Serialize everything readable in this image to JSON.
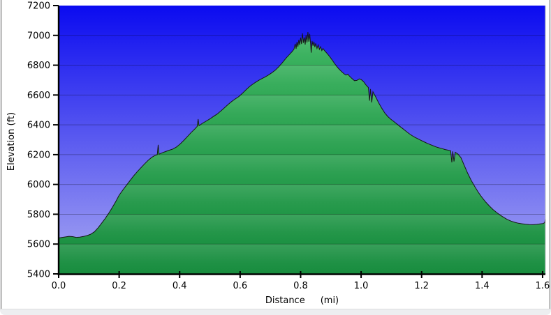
{
  "chart_data": {
    "type": "area",
    "title": "",
    "xlabel": "Distance",
    "xlabel_unit": "(mi)",
    "ylabel": "Elevation (ft)",
    "xlim": [
      0,
      1.609
    ],
    "ylim": [
      5400,
      7200
    ],
    "grid": "horizontal-only",
    "legend": "none",
    "x_ticks": [
      0.0,
      0.2,
      0.4,
      0.6,
      0.8,
      1.0,
      1.2,
      1.4,
      1.6
    ],
    "x_tick_labels": [
      "0.0",
      "0.2",
      "0.4",
      "0.6",
      "0.8",
      "1.0",
      "1.2",
      "1.4",
      "1.6"
    ],
    "y_ticks": [
      5400,
      5600,
      5800,
      6000,
      6200,
      6400,
      6600,
      6800,
      7000,
      7200
    ],
    "y_tick_labels": [
      "5400",
      "5600",
      "5800",
      "6000",
      "6200",
      "6400",
      "6600",
      "6800",
      "7000",
      "7200"
    ],
    "gridline_values": [
      5600,
      5800,
      6000,
      6200,
      6400,
      6600,
      6800,
      7000
    ],
    "colors": {
      "sky_top": "#0b0bf0",
      "sky_bottom": "#a9a9f1",
      "area_top": "#3fb863",
      "area_bottom": "#178c3e",
      "area_outline": "#161616",
      "band_highlight": "rgba(255,255,255,0.13)",
      "gridline": "rgba(0,0,0,0.28)",
      "axis": "#000000",
      "plot_right_border": "#c4c8cc",
      "window_edge": "#edeef0"
    },
    "points": [
      [
        0.0,
        5641
      ],
      [
        0.01,
        5644
      ],
      [
        0.022,
        5648
      ],
      [
        0.034,
        5652
      ],
      [
        0.046,
        5650
      ],
      [
        0.058,
        5645
      ],
      [
        0.07,
        5647
      ],
      [
        0.082,
        5651
      ],
      [
        0.094,
        5657
      ],
      [
        0.106,
        5666
      ],
      [
        0.118,
        5682
      ],
      [
        0.13,
        5708
      ],
      [
        0.142,
        5740
      ],
      [
        0.154,
        5772
      ],
      [
        0.166,
        5808
      ],
      [
        0.178,
        5848
      ],
      [
        0.19,
        5890
      ],
      [
        0.2,
        5928
      ],
      [
        0.212,
        5962
      ],
      [
        0.224,
        5994
      ],
      [
        0.236,
        6026
      ],
      [
        0.248,
        6058
      ],
      [
        0.26,
        6086
      ],
      [
        0.272,
        6112
      ],
      [
        0.284,
        6138
      ],
      [
        0.296,
        6162
      ],
      [
        0.308,
        6182
      ],
      [
        0.318,
        6194
      ],
      [
        0.326,
        6200
      ],
      [
        0.329,
        6266
      ],
      [
        0.332,
        6203
      ],
      [
        0.342,
        6212
      ],
      [
        0.354,
        6221
      ],
      [
        0.366,
        6230
      ],
      [
        0.378,
        6238
      ],
      [
        0.39,
        6252
      ],
      [
        0.402,
        6272
      ],
      [
        0.414,
        6296
      ],
      [
        0.426,
        6322
      ],
      [
        0.438,
        6348
      ],
      [
        0.45,
        6372
      ],
      [
        0.458,
        6390
      ],
      [
        0.461,
        6438
      ],
      [
        0.464,
        6394
      ],
      [
        0.475,
        6410
      ],
      [
        0.487,
        6424
      ],
      [
        0.5,
        6440
      ],
      [
        0.512,
        6456
      ],
      [
        0.524,
        6472
      ],
      [
        0.536,
        6492
      ],
      [
        0.548,
        6514
      ],
      [
        0.56,
        6536
      ],
      [
        0.572,
        6556
      ],
      [
        0.584,
        6574
      ],
      [
        0.596,
        6590
      ],
      [
        0.608,
        6612
      ],
      [
        0.62,
        6636
      ],
      [
        0.632,
        6658
      ],
      [
        0.644,
        6676
      ],
      [
        0.656,
        6692
      ],
      [
        0.668,
        6706
      ],
      [
        0.68,
        6718
      ],
      [
        0.692,
        6732
      ],
      [
        0.704,
        6748
      ],
      [
        0.716,
        6766
      ],
      [
        0.728,
        6790
      ],
      [
        0.74,
        6818
      ],
      [
        0.752,
        6848
      ],
      [
        0.764,
        6874
      ],
      [
        0.772,
        6892
      ],
      [
        0.778,
        6908
      ],
      [
        0.782,
        6944
      ],
      [
        0.785,
        6910
      ],
      [
        0.788,
        6956
      ],
      [
        0.791,
        6924
      ],
      [
        0.794,
        6970
      ],
      [
        0.797,
        6936
      ],
      [
        0.8,
        6985
      ],
      [
        0.803,
        6942
      ],
      [
        0.806,
        7014
      ],
      [
        0.809,
        6950
      ],
      [
        0.812,
        6986
      ],
      [
        0.815,
        6938
      ],
      [
        0.818,
        7002
      ],
      [
        0.821,
        6952
      ],
      [
        0.824,
        7022
      ],
      [
        0.827,
        6958
      ],
      [
        0.83,
        7010
      ],
      [
        0.833,
        6940
      ],
      [
        0.835,
        6884
      ],
      [
        0.838,
        6962
      ],
      [
        0.841,
        6930
      ],
      [
        0.844,
        6958
      ],
      [
        0.847,
        6922
      ],
      [
        0.85,
        6946
      ],
      [
        0.854,
        6912
      ],
      [
        0.858,
        6936
      ],
      [
        0.862,
        6906
      ],
      [
        0.866,
        6924
      ],
      [
        0.87,
        6898
      ],
      [
        0.874,
        6912
      ],
      [
        0.88,
        6896
      ],
      [
        0.888,
        6878
      ],
      [
        0.896,
        6858
      ],
      [
        0.904,
        6836
      ],
      [
        0.912,
        6812
      ],
      [
        0.92,
        6790
      ],
      [
        0.928,
        6772
      ],
      [
        0.936,
        6756
      ],
      [
        0.944,
        6742
      ],
      [
        0.95,
        6734
      ],
      [
        0.956,
        6740
      ],
      [
        0.962,
        6726
      ],
      [
        0.97,
        6710
      ],
      [
        0.978,
        6696
      ],
      [
        0.986,
        6698
      ],
      [
        0.994,
        6708
      ],
      [
        1.0,
        6704
      ],
      [
        1.008,
        6690
      ],
      [
        1.016,
        6668
      ],
      [
        1.024,
        6650
      ],
      [
        1.028,
        6562
      ],
      [
        1.031,
        6640
      ],
      [
        1.035,
        6550
      ],
      [
        1.039,
        6622
      ],
      [
        1.048,
        6588
      ],
      [
        1.058,
        6548
      ],
      [
        1.068,
        6512
      ],
      [
        1.078,
        6480
      ],
      [
        1.088,
        6456
      ],
      [
        1.098,
        6438
      ],
      [
        1.108,
        6422
      ],
      [
        1.118,
        6406
      ],
      [
        1.128,
        6390
      ],
      [
        1.138,
        6374
      ],
      [
        1.148,
        6358
      ],
      [
        1.158,
        6342
      ],
      [
        1.168,
        6328
      ],
      [
        1.178,
        6316
      ],
      [
        1.188,
        6306
      ],
      [
        1.198,
        6296
      ],
      [
        1.208,
        6286
      ],
      [
        1.218,
        6276
      ],
      [
        1.228,
        6268
      ],
      [
        1.238,
        6260
      ],
      [
        1.248,
        6252
      ],
      [
        1.258,
        6246
      ],
      [
        1.268,
        6240
      ],
      [
        1.278,
        6234
      ],
      [
        1.288,
        6230
      ],
      [
        1.296,
        6226
      ],
      [
        1.3,
        6148
      ],
      [
        1.303,
        6222
      ],
      [
        1.307,
        6154
      ],
      [
        1.311,
        6216
      ],
      [
        1.32,
        6204
      ],
      [
        1.33,
        6180
      ],
      [
        1.34,
        6132
      ],
      [
        1.352,
        6076
      ],
      [
        1.364,
        6028
      ],
      [
        1.376,
        5986
      ],
      [
        1.388,
        5946
      ],
      [
        1.4,
        5912
      ],
      [
        1.412,
        5882
      ],
      [
        1.424,
        5856
      ],
      [
        1.436,
        5832
      ],
      [
        1.448,
        5812
      ],
      [
        1.46,
        5794
      ],
      [
        1.472,
        5778
      ],
      [
        1.484,
        5764
      ],
      [
        1.496,
        5754
      ],
      [
        1.508,
        5746
      ],
      [
        1.52,
        5740
      ],
      [
        1.532,
        5736
      ],
      [
        1.544,
        5733
      ],
      [
        1.556,
        5731
      ],
      [
        1.568,
        5730
      ],
      [
        1.58,
        5732
      ],
      [
        1.592,
        5735
      ],
      [
        1.602,
        5738
      ],
      [
        1.607,
        5744
      ],
      [
        1.609,
        5770
      ]
    ]
  }
}
